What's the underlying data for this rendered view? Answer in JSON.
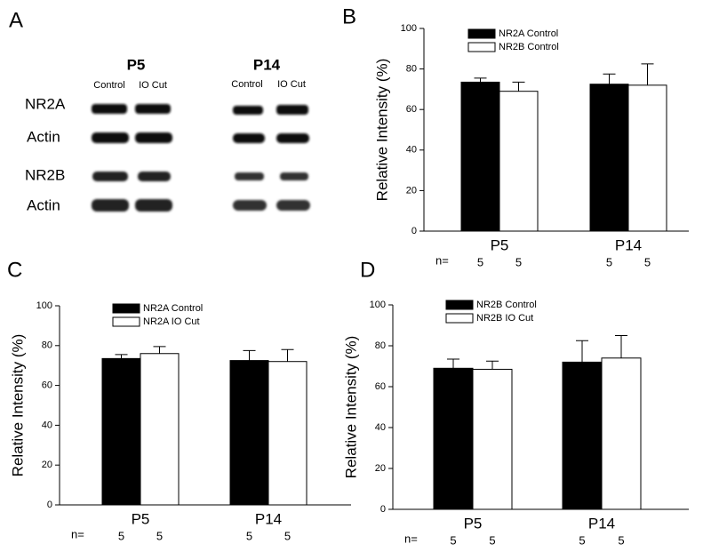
{
  "blot": {
    "panel_label": "A",
    "groups": [
      {
        "label": "P5",
        "lanes": [
          "Control",
          "IO Cut"
        ]
      },
      {
        "label": "P14",
        "lanes": [
          "Control",
          "IO Cut"
        ]
      }
    ],
    "rows": [
      "NR2A",
      "Actin",
      "NR2B",
      "Actin"
    ]
  },
  "chart_data": [
    {
      "type": "bar",
      "panel_label": "B",
      "ylabel": "Relative Intensity (%)",
      "categories": [
        "P5",
        "P14"
      ],
      "ylim": [
        0,
        100
      ],
      "yticks": [
        0,
        20,
        40,
        60,
        80,
        100
      ],
      "n_label": "n=",
      "series": [
        {
          "name": "NR2A Control",
          "color": "#000000",
          "values": [
            73.5,
            72.5
          ],
          "errors": [
            2,
            5
          ],
          "n": [
            5,
            5
          ]
        },
        {
          "name": "NR2B Control",
          "color": "#ffffff",
          "values": [
            69,
            72
          ],
          "errors": [
            4.5,
            10.5
          ],
          "n": [
            5,
            5
          ]
        }
      ]
    },
    {
      "type": "bar",
      "panel_label": "C",
      "ylabel": "Relative Intensity (%)",
      "categories": [
        "P5",
        "P14"
      ],
      "ylim": [
        0,
        100
      ],
      "yticks": [
        0,
        20,
        40,
        60,
        80,
        100
      ],
      "n_label": "n=",
      "series": [
        {
          "name": "NR2A Control",
          "color": "#000000",
          "values": [
            73.5,
            72.5
          ],
          "errors": [
            2,
            5
          ],
          "n": [
            5,
            5
          ]
        },
        {
          "name": "NR2A  IO Cut",
          "color": "#ffffff",
          "values": [
            76,
            72
          ],
          "errors": [
            3.5,
            6
          ],
          "n": [
            5,
            5
          ]
        }
      ]
    },
    {
      "type": "bar",
      "panel_label": "D",
      "ylabel": "Relative Intensity (%)",
      "categories": [
        "P5",
        "P14"
      ],
      "ylim": [
        0,
        100
      ],
      "yticks": [
        0,
        20,
        40,
        60,
        80,
        100
      ],
      "n_label": "n=",
      "series": [
        {
          "name": "NR2B  Control",
          "color": "#000000",
          "values": [
            69,
            72
          ],
          "errors": [
            4.5,
            10.5
          ],
          "n": [
            5,
            5
          ]
        },
        {
          "name": "NR2B  IO Cut",
          "color": "#ffffff",
          "values": [
            68.5,
            74
          ],
          "errors": [
            4,
            11
          ],
          "n": [
            5,
            5
          ]
        }
      ]
    }
  ]
}
